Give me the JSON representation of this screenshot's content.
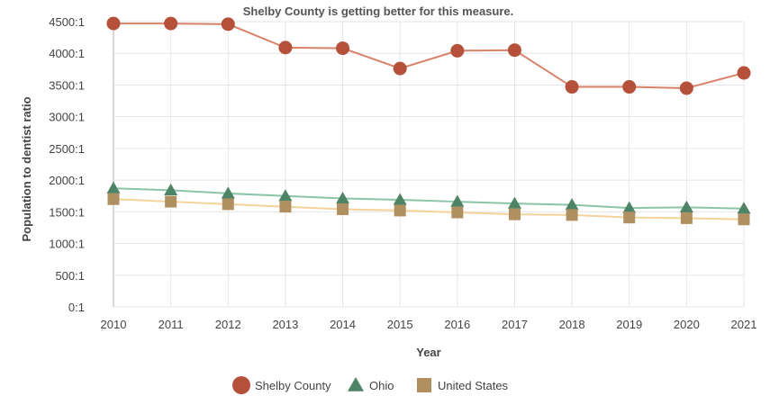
{
  "chart_data": {
    "type": "line",
    "title": "Shelby County is getting better for this measure.",
    "xlabel": "Year",
    "ylabel": "Population to dentist ratio",
    "x": [
      "2010",
      "2011",
      "2012",
      "2013",
      "2014",
      "2015",
      "2016",
      "2017",
      "2018",
      "2019",
      "2020",
      "2021"
    ],
    "yticks": [
      "0:1",
      "500:1",
      "1000:1",
      "1500:1",
      "2000:1",
      "2500:1",
      "3000:1",
      "3500:1",
      "4000:1",
      "4500:1"
    ],
    "ylim": [
      0,
      4500
    ],
    "grid": true,
    "legend_position": "bottom-center",
    "series": [
      {
        "name": "Shelby County",
        "marker": "circle",
        "color": "#d9826a",
        "marker_color": "#b5503a",
        "values": [
          4470,
          4470,
          4460,
          4090,
          4080,
          3760,
          4040,
          4050,
          3470,
          3470,
          3450,
          3690
        ]
      },
      {
        "name": "Ohio",
        "marker": "triangle",
        "color": "#8cc4a8",
        "marker_color": "#4e8466",
        "values": [
          1870,
          1840,
          1790,
          1750,
          1710,
          1690,
          1660,
          1630,
          1610,
          1560,
          1570,
          1550
        ]
      },
      {
        "name": "United States",
        "marker": "square",
        "color": "#f4d29a",
        "marker_color": "#b09060",
        "values": [
          1700,
          1660,
          1620,
          1580,
          1540,
          1520,
          1490,
          1460,
          1450,
          1410,
          1400,
          1380
        ]
      }
    ]
  }
}
